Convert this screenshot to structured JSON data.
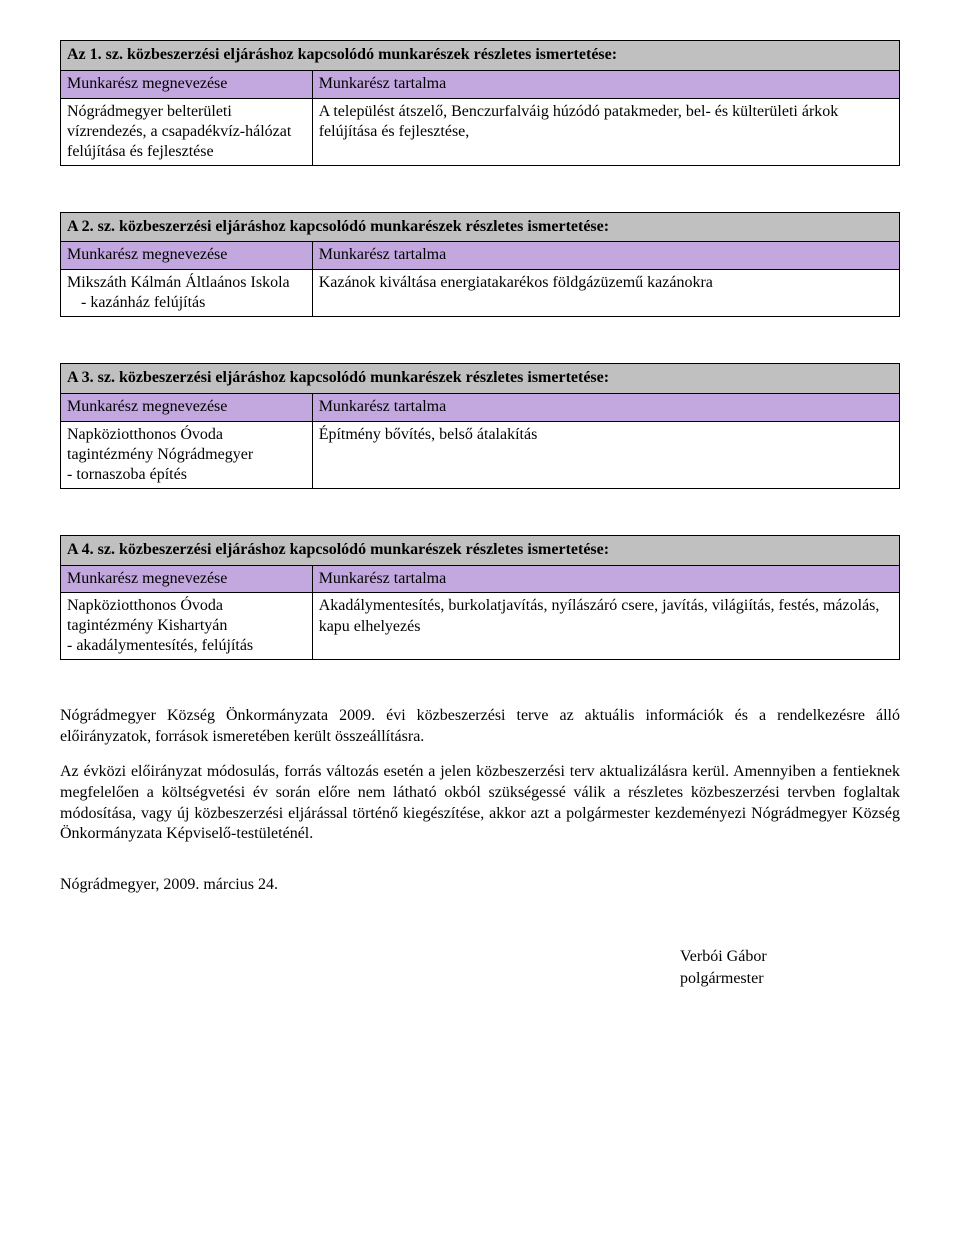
{
  "colors": {
    "section_bg": "#c0c0c0",
    "header_row_bg": "#c3a8e0",
    "border": "#000000",
    "text": "#000000",
    "page_bg": "#ffffff"
  },
  "typography": {
    "body_font": "Times New Roman",
    "body_size_pt": 12,
    "small_size_pt": 10.5,
    "title_weight": "bold"
  },
  "column_headers": {
    "left": "Munkarész megnevezése",
    "right": "Munkarész tartalma"
  },
  "sections": [
    {
      "title": "Az 1. sz. közbeszerzési eljáráshoz kapcsolódó munkarészek részletes ismertetése:",
      "left_cell": "Nógrádmegyer belterületi vízrendezés, a csapadékvíz-hálózat felújítása és fejlesztése",
      "right_cell": "A települést átszelő, Benczurfalváig húzódó patakmeder, bel- és külterületi árkok felújítása és fejlesztése,"
    },
    {
      "title": "A 2. sz. közbeszerzési eljáráshoz kapcsolódó munkarészek részletes ismertetése:",
      "left_cell_line1": "Mikszáth Kálmán Áltlaános Iskola",
      "left_cell_line2": "-    kazánház felújítás",
      "right_cell": "Kazánok kiváltása energiatakarékos földgázüzemű kazánokra"
    },
    {
      "title": "A 3. sz. közbeszerzési eljáráshoz kapcsolódó munkarészek részletes ismertetése:",
      "left_cell_line1": "Napköziotthonos Óvoda tagintézmény Nógrádmegyer",
      "left_cell_line2": "- tornaszoba építés",
      "right_cell": "Építmény bővítés, belső átalakítás"
    },
    {
      "title": "A 4. sz. közbeszerzési eljáráshoz kapcsolódó munkarészek részletes ismertetése:",
      "left_cell_line1": "Napköziotthonos Óvoda tagintézmény Kishartyán",
      "left_cell_line2": "- akadálymentesítés, felújítás",
      "right_cell": "Akadálymentesítés, burkolatjavítás, nyílászáró csere, javítás, világiítás, festés, mázolás, kapu elhelyezés"
    }
  ],
  "closing": {
    "p1": "Nógrádmegyer Község Önkormányzata 2009. évi közbeszerzési terve az aktuális információk és a rendelkezésre álló előirányzatok, források ismeretében került összeállításra.",
    "p2": "Az évközi előirányzat módosulás, forrás változás esetén a jelen közbeszerzési terv aktualizálásra kerül. Amennyiben a fentieknek megfelelően a költségvetési év során előre nem látható okból szükségessé válik a részletes közbeszerzési tervben foglaltak módosítása, vagy új közbeszerzési eljárással történő kiegészítése, akkor azt a polgármester kezdeményezi Nógrádmegyer Község Önkormányzata Képviselő-testületénél."
  },
  "date": "Nógrádmegyer, 2009. március 24.",
  "signature": {
    "name": "Verbói Gábor",
    "role": "polgármester"
  }
}
